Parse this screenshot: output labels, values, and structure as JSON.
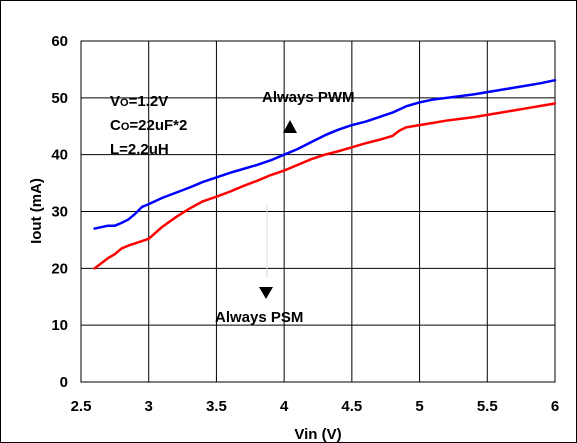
{
  "chart_data": {
    "type": "line",
    "title": "",
    "xlabel": "Vin (V)",
    "ylabel": "Iout (mA)",
    "xlim": [
      2.5,
      6
    ],
    "ylim": [
      0,
      60
    ],
    "x_ticks": [
      "2.5",
      "3",
      "3.5",
      "4",
      "4.5",
      "5",
      "5.5",
      "6"
    ],
    "y_ticks": [
      "0",
      "10",
      "20",
      "30",
      "40",
      "50",
      "60"
    ],
    "grid": true,
    "series": [
      {
        "name": "",
        "color": "#0000ff",
        "x": [
          2.6,
          2.7,
          2.75,
          2.8,
          2.85,
          2.9,
          2.95,
          3.0,
          3.1,
          3.2,
          3.3,
          3.4,
          3.5,
          3.6,
          3.7,
          3.8,
          3.9,
          4.0,
          4.1,
          4.2,
          4.3,
          4.4,
          4.5,
          4.6,
          4.7,
          4.8,
          4.9,
          5.0,
          5.1,
          5.2,
          5.3,
          5.4,
          5.5,
          5.6,
          5.7,
          5.8,
          5.9,
          6.0
        ],
        "y": [
          27,
          27.5,
          27.5,
          28,
          28.6,
          29.6,
          30.8,
          31.3,
          32.4,
          33.3,
          34.2,
          35.2,
          36,
          36.8,
          37.5,
          38.2,
          39,
          40,
          41,
          42.2,
          43.4,
          44.4,
          45.2,
          45.8,
          46.6,
          47.4,
          48.5,
          49.2,
          49.7,
          50,
          50.3,
          50.6,
          51,
          51.4,
          51.8,
          52.2,
          52.6,
          53.1
        ]
      },
      {
        "name": "",
        "color": "#ff0000",
        "x": [
          2.6,
          2.7,
          2.75,
          2.8,
          2.85,
          2.9,
          2.95,
          3.0,
          3.1,
          3.2,
          3.3,
          3.4,
          3.5,
          3.6,
          3.7,
          3.8,
          3.9,
          4.0,
          4.1,
          4.2,
          4.3,
          4.4,
          4.5,
          4.6,
          4.7,
          4.8,
          4.85,
          4.9,
          5.0,
          5.1,
          5.2,
          5.3,
          5.4,
          5.5,
          5.6,
          5.7,
          5.8,
          5.9,
          6.0
        ],
        "y": [
          20,
          21.8,
          22.5,
          23.5,
          24,
          24.4,
          24.8,
          25.2,
          27.3,
          29,
          30.5,
          31.8,
          32.6,
          33.5,
          34.5,
          35.4,
          36.4,
          37.2,
          38.2,
          39.2,
          40,
          40.6,
          41.3,
          42,
          42.6,
          43.3,
          44.2,
          44.8,
          45.2,
          45.6,
          46,
          46.3,
          46.6,
          47,
          47.4,
          47.8,
          48.2,
          48.6,
          49
        ]
      }
    ],
    "annotations": {
      "conditions": {
        "vo_prefix": "V",
        "vo_sub": "O",
        "vo_value": "=1.2V",
        "co_prefix": "C",
        "co_sub": "O",
        "co_value": "=22uF*2",
        "l_line": "L=2.2uH"
      },
      "always_pwm": "Always PWM",
      "always_psm": "Always PSM"
    }
  }
}
